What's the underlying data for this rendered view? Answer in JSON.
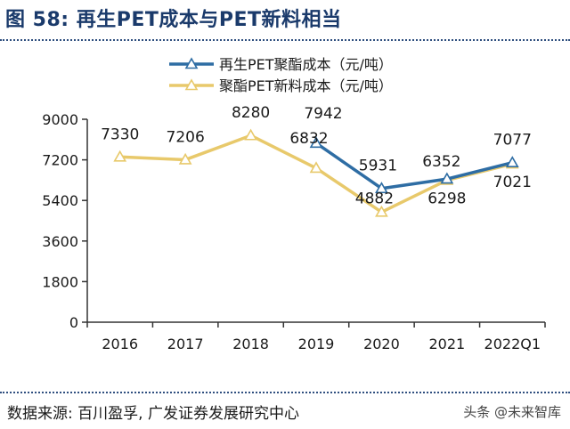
{
  "figure": {
    "title": "图  58:  再生PET成本与PET新料相当",
    "source": "数据来源:  百川盈孚,  广发证券发展研究中心",
    "watermark": "头条 @未来智库"
  },
  "chart_data": {
    "type": "line",
    "categories": [
      "2016",
      "2017",
      "2018",
      "2019",
      "2020",
      "2021",
      "2022Q1"
    ],
    "ylim": [
      0,
      9000
    ],
    "yticks": [
      0,
      1800,
      3600,
      5400,
      7200,
      9000
    ],
    "grid": false,
    "legend_position": "top-right",
    "series": [
      {
        "name": "再生PET聚酯成本（元/吨）",
        "color": "#2e6da4",
        "values": [
          null,
          null,
          null,
          7942,
          5931,
          6352,
          7077
        ]
      },
      {
        "name": "聚酯PET新料成本（元/吨）",
        "color": "#e8c96b",
        "values": [
          7330,
          7206,
          8280,
          6832,
          4882,
          6298,
          7021
        ]
      }
    ]
  }
}
